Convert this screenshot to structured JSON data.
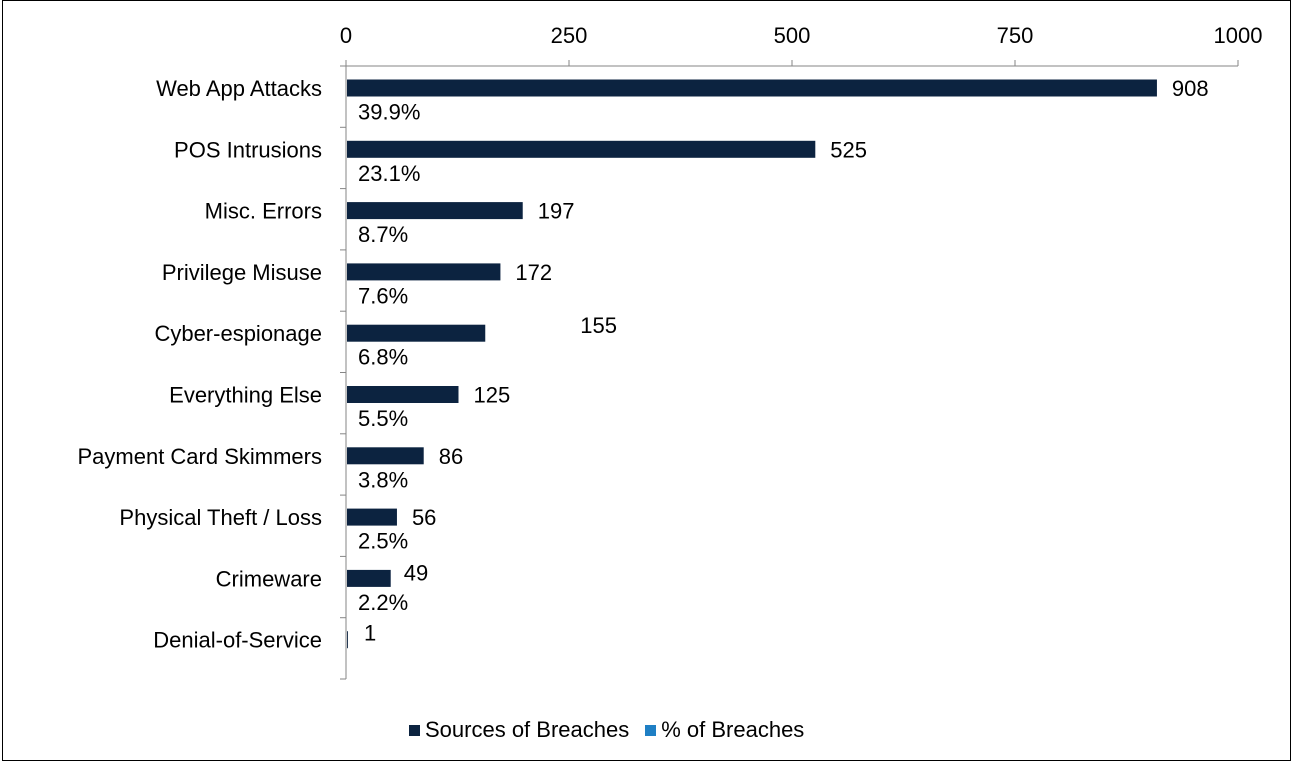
{
  "chart_data": {
    "type": "bar",
    "orientation": "horizontal",
    "categories": [
      "Web App Attacks",
      "POS Intrusions",
      "Misc. Errors",
      "Privilege Misuse",
      "Cyber-espionage",
      "Everything Else",
      "Payment Card Skimmers",
      "Physical Theft / Loss",
      "Crimeware",
      "Denial-of-Service"
    ],
    "series": [
      {
        "name": "Sources of Breaches",
        "values": [
          908,
          525,
          197,
          172,
          155,
          125,
          86,
          56,
          49,
          1
        ],
        "labels": [
          "908",
          "525",
          "197",
          "172",
          "155",
          "125",
          "86",
          "56",
          "49",
          "1"
        ],
        "color": "#0c2340"
      },
      {
        "name": "% of Breaches",
        "values": [
          39.9,
          23.1,
          8.7,
          7.6,
          6.8,
          5.5,
          3.8,
          2.5,
          2.2,
          null
        ],
        "labels": [
          "39.9%",
          "23.1%",
          "8.7%",
          "7.6%",
          "6.8%",
          "5.5%",
          "3.8%",
          "2.5%",
          "2.2%",
          ""
        ],
        "color": "#1f7fc4"
      }
    ],
    "x_ticks": [
      "0",
      "250",
      "500",
      "750",
      "1000"
    ],
    "xlim": [
      0,
      1000
    ],
    "axis_position": "top",
    "grid": false,
    "legend_position": "bottom"
  },
  "legend": {
    "items": [
      {
        "label": "Sources of Breaches",
        "color": "#0c2340"
      },
      {
        "label": "% of Breaches",
        "color": "#1f7fc4"
      }
    ]
  }
}
